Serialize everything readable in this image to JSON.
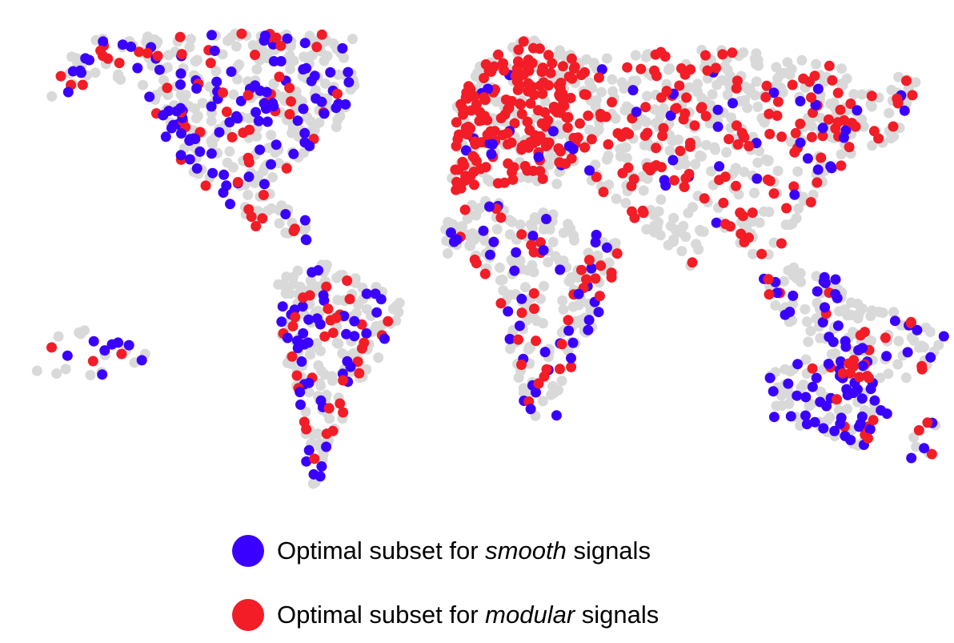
{
  "legend": [
    {
      "parts": [
        "Optimal subset for ",
        "smooth",
        " signals"
      ],
      "color": "#3a00ff"
    },
    {
      "parts": [
        "Optimal subset for ",
        "modular",
        " signals"
      ],
      "color": "#f21d26"
    }
  ],
  "base_color": "#d9d9d9"
}
